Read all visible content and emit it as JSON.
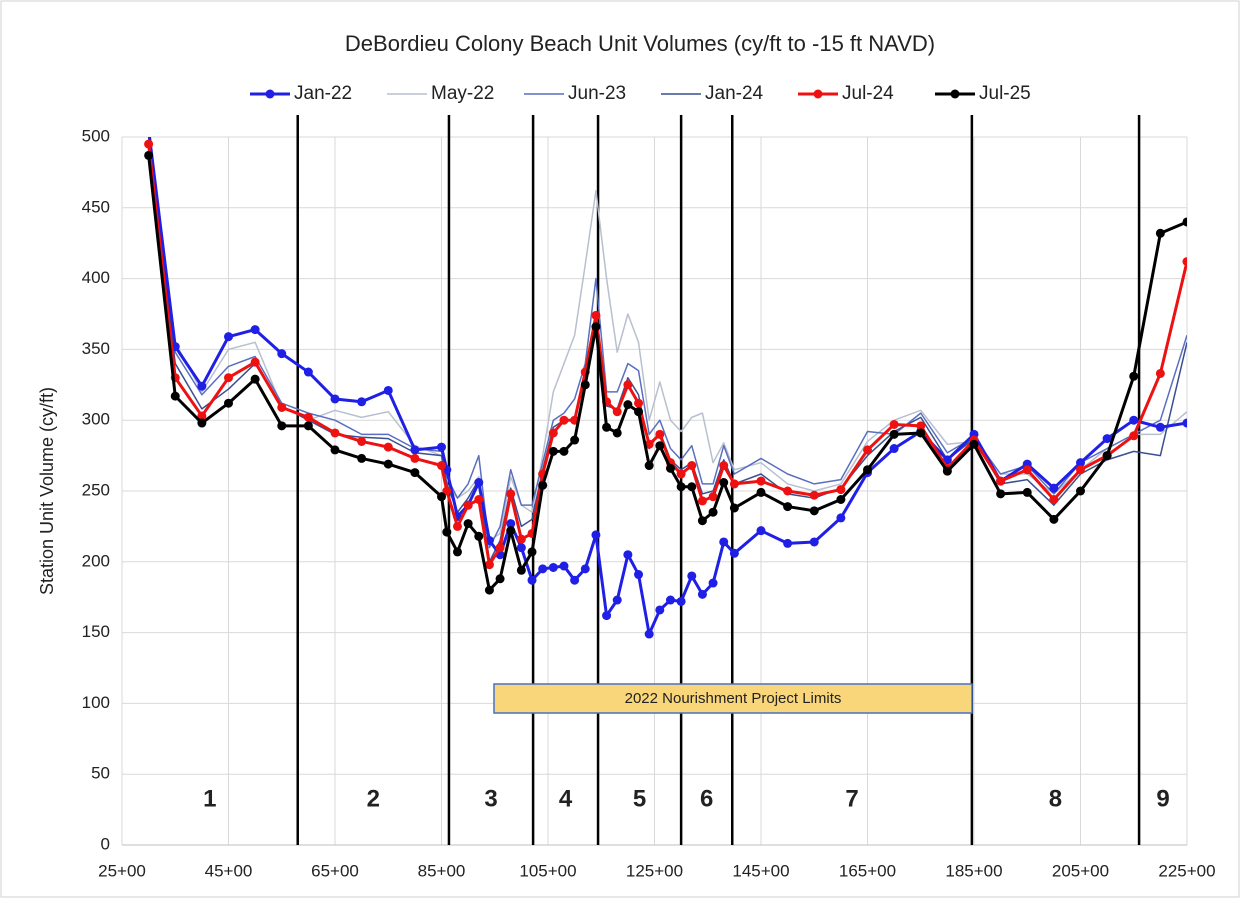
{
  "chart_data": {
    "type": "line",
    "title": "DeBordieu Colony Beach Unit Volumes (cy/ft to -15 ft NAVD)",
    "y_label": "Station Unit Volume (cy/ft)",
    "annotation": "2022 Nourishment Project Limits",
    "grid": true,
    "legend": "top",
    "xlim": [
      25,
      225
    ],
    "ylim": [
      0,
      500
    ],
    "xticks": [
      {
        "value": 25,
        "label": "25+00"
      },
      {
        "value": 45,
        "label": "45+00"
      },
      {
        "value": 65,
        "label": "65+00"
      },
      {
        "value": 85,
        "label": "85+00"
      },
      {
        "value": 105,
        "label": "105+00"
      },
      {
        "value": 125,
        "label": "125+00"
      },
      {
        "value": 145,
        "label": "145+00"
      },
      {
        "value": 165,
        "label": "165+00"
      },
      {
        "value": 185,
        "label": "185+00"
      },
      {
        "value": 205,
        "label": "205+00"
      },
      {
        "value": 225,
        "label": "225+00"
      }
    ],
    "yticks": [
      0,
      50,
      100,
      150,
      200,
      250,
      300,
      350,
      400,
      450,
      500
    ],
    "zone_boundaries": [
      58,
      86.4,
      102.2,
      114.4,
      130,
      139.6,
      184.6,
      216
    ],
    "zone_labels": [
      "1",
      "2",
      "3",
      "4",
      "5",
      "6",
      "7",
      "8",
      "9"
    ],
    "x": [
      30,
      35,
      40,
      45,
      50,
      55,
      60,
      65,
      70,
      75,
      80,
      85,
      86,
      88,
      90,
      92,
      94,
      96,
      98,
      100,
      102,
      104,
      106,
      108,
      110,
      112,
      114,
      116,
      118,
      120,
      122,
      124,
      126,
      128,
      130,
      132,
      134,
      136,
      138,
      140,
      145,
      150,
      155,
      160,
      165,
      170,
      175,
      180,
      185,
      190,
      195,
      200,
      205,
      210,
      215,
      220,
      225
    ],
    "series": [
      {
        "name": "Jan-22",
        "color": "#1f1fe6",
        "markers": true,
        "values": [
          505,
          352,
          324,
          359,
          364,
          347,
          334,
          315,
          313,
          321,
          279,
          281,
          265,
          232,
          240,
          256,
          215,
          205,
          227,
          210,
          187,
          195,
          196,
          197,
          187,
          195,
          219,
          162,
          173,
          205,
          191,
          149,
          166,
          173,
          172,
          190,
          177,
          185,
          214,
          206,
          222,
          213,
          214,
          231,
          263,
          280,
          292,
          272,
          290,
          257,
          269,
          252,
          270,
          287,
          300,
          295,
          298
        ]
      },
      {
        "name": "May-22",
        "color": "#b8bfcf",
        "markers": false,
        "values": [
          510,
          355,
          320,
          350,
          355,
          310,
          300,
          307,
          302,
          306,
          282,
          275,
          255,
          245,
          250,
          260,
          215,
          220,
          260,
          240,
          235,
          275,
          320,
          340,
          360,
          410,
          462,
          400,
          348,
          375,
          355,
          300,
          327,
          300,
          292,
          302,
          305,
          270,
          284,
          265,
          270,
          255,
          250,
          255,
          285,
          300,
          307,
          283,
          285,
          262,
          262,
          248,
          265,
          280,
          290,
          290,
          306
        ]
      },
      {
        "name": "Jun-23",
        "color": "#5a6fbf",
        "markers": false,
        "values": [
          505,
          348,
          318,
          338,
          345,
          312,
          305,
          300,
          290,
          290,
          280,
          278,
          260,
          245,
          255,
          275,
          210,
          225,
          265,
          240,
          240,
          270,
          300,
          305,
          315,
          340,
          400,
          320,
          320,
          340,
          335,
          290,
          300,
          280,
          272,
          282,
          255,
          255,
          282,
          262,
          273,
          262,
          255,
          258,
          292,
          290,
          305,
          277,
          288,
          262,
          268,
          248,
          270,
          280,
          290,
          300,
          360
        ]
      },
      {
        "name": "Jan-24",
        "color": "#3a4f8f",
        "markers": false,
        "values": [
          500,
          340,
          308,
          322,
          340,
          310,
          300,
          290,
          288,
          287,
          277,
          275,
          255,
          235,
          245,
          258,
          200,
          215,
          252,
          225,
          230,
          265,
          295,
          300,
          300,
          330,
          370,
          310,
          308,
          330,
          318,
          280,
          292,
          272,
          265,
          270,
          248,
          250,
          272,
          255,
          262,
          248,
          245,
          252,
          275,
          292,
          302,
          272,
          287,
          255,
          258,
          240,
          262,
          272,
          278,
          275,
          355
        ]
      },
      {
        "name": "Jul-24",
        "color": "#ee1111",
        "markers": true,
        "values": [
          495,
          330,
          303,
          330,
          341,
          309,
          302,
          291,
          285,
          281,
          273,
          268,
          250,
          225,
          240,
          244,
          198,
          210,
          248,
          216,
          220,
          262,
          291,
          300,
          300,
          334,
          374,
          313,
          306,
          325,
          312,
          283,
          290,
          270,
          262,
          268,
          243,
          246,
          268,
          255,
          257,
          250,
          247,
          251,
          279,
          297,
          296,
          266,
          286,
          257,
          265,
          244,
          265,
          275,
          289,
          333,
          412
        ]
      },
      {
        "name": "Jul-25",
        "color": "#000000",
        "markers": true,
        "values": [
          487,
          317,
          298,
          312,
          329,
          296,
          296,
          279,
          273,
          269,
          263,
          246,
          221,
          207,
          227,
          218,
          180,
          188,
          222,
          194,
          207,
          254,
          278,
          278,
          286,
          325,
          366,
          295,
          291,
          311,
          306,
          268,
          282,
          266,
          253,
          253,
          229,
          235,
          256,
          238,
          249,
          239,
          236,
          244,
          265,
          290,
          291,
          264,
          283,
          248,
          249,
          230,
          250,
          275,
          331,
          432,
          440
        ]
      }
    ]
  }
}
